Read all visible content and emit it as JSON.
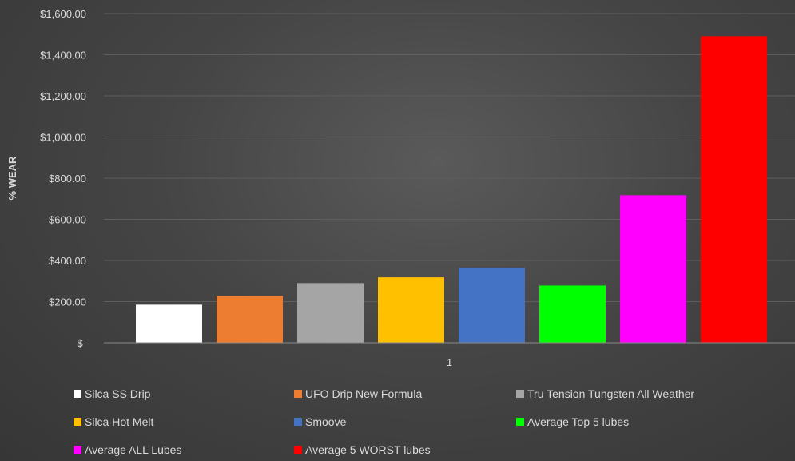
{
  "chart_data": {
    "type": "bar",
    "ylabel": "% WEAR",
    "xlabel": "",
    "categories": [
      "1"
    ],
    "ylim": [
      0,
      1600
    ],
    "yticks": [
      0,
      200,
      400,
      600,
      800,
      1000,
      1200,
      1400,
      1600
    ],
    "ytick_labels": [
      "$-",
      "$200.00",
      "$400.00",
      "$600.00",
      "$800.00",
      "$1,000.00",
      "$1,200.00",
      "$1,400.00",
      "$1,600.00"
    ],
    "grid": true,
    "legend_position": "bottom",
    "series": [
      {
        "name": "Silca SS Drip",
        "values": [
          185
        ],
        "color": "#ffffff"
      },
      {
        "name": "UFO Drip New Formula",
        "values": [
          228
        ],
        "color": "#ed7d31"
      },
      {
        "name": "Tru Tension Tungsten All Weather",
        "values": [
          290
        ],
        "color": "#a5a5a5"
      },
      {
        "name": "Silca Hot Melt",
        "values": [
          318
        ],
        "color": "#ffc000"
      },
      {
        "name": "Smoove",
        "values": [
          363
        ],
        "color": "#4472c4"
      },
      {
        "name": "Average Top 5 lubes",
        "values": [
          278
        ],
        "color": "#00ff00"
      },
      {
        "name": "Average ALL Lubes",
        "values": [
          717
        ],
        "color": "#ff00ff"
      },
      {
        "name": "Average 5 WORST lubes",
        "values": [
          1490
        ],
        "color": "#ff0000"
      }
    ]
  }
}
